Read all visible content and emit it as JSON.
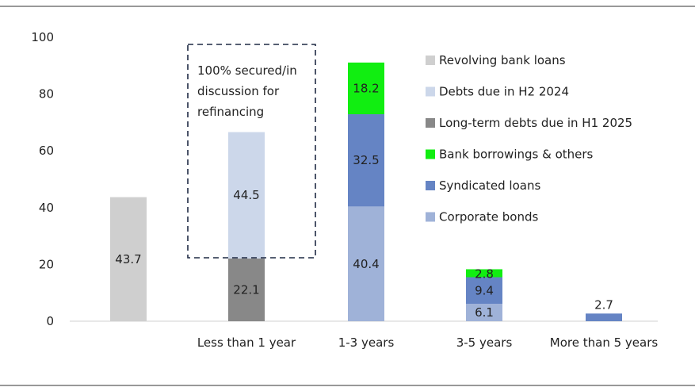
{
  "chart_data": {
    "type": "bar",
    "stacked": true,
    "categories": [
      "",
      "Less than 1 year",
      "1-3 years",
      "3-5 years",
      "More than 5 years"
    ],
    "ylim": [
      0,
      100
    ],
    "yticks": [
      0,
      20,
      40,
      60,
      80,
      100
    ],
    "grid": false,
    "legend_position": "right",
    "series": [
      {
        "name": "Revolving bank loans",
        "color": "#cfcfcf",
        "values": [
          43.7,
          null,
          null,
          null,
          null
        ],
        "labels": [
          "43.7",
          "",
          "",
          "",
          ""
        ]
      },
      {
        "name": "Debts due in H2 2024",
        "color": "#ccd7ea",
        "values": [
          null,
          44.5,
          null,
          null,
          null
        ],
        "labels": [
          "",
          "44.5",
          "",
          "",
          ""
        ]
      },
      {
        "name": "Long-term debts due in H1 2025",
        "color": "#888888",
        "values": [
          null,
          22.1,
          null,
          null,
          null
        ],
        "labels": [
          "",
          "22.1",
          "",
          "",
          ""
        ]
      },
      {
        "name": "Bank borrowings & others",
        "color": "#11ee11",
        "values": [
          null,
          null,
          18.2,
          2.8,
          null
        ],
        "labels": [
          "",
          "",
          "18.2",
          "2.8",
          ""
        ]
      },
      {
        "name": "Syndicated loans",
        "color": "#6584c4",
        "values": [
          null,
          null,
          32.5,
          9.4,
          2.7
        ],
        "labels": [
          "",
          "",
          "32.5",
          "9.4",
          "2.7"
        ]
      },
      {
        "name": "Corporate bonds",
        "color": "#9fb2d8",
        "values": [
          null,
          null,
          40.4,
          6.1,
          null
        ],
        "labels": [
          "",
          "",
          "40.4",
          "6.1",
          ""
        ]
      }
    ],
    "stack_order": [
      "Revolving bank loans",
      "Long-term debts due in H1 2025",
      "Debts due in H2 2024",
      "Corporate bonds",
      "Syndicated loans",
      "Bank borrowings & others"
    ],
    "annotation": {
      "lines": [
        "100% secured/in",
        "discussion for",
        "refinancing"
      ],
      "category": "Less than 1 year"
    }
  }
}
